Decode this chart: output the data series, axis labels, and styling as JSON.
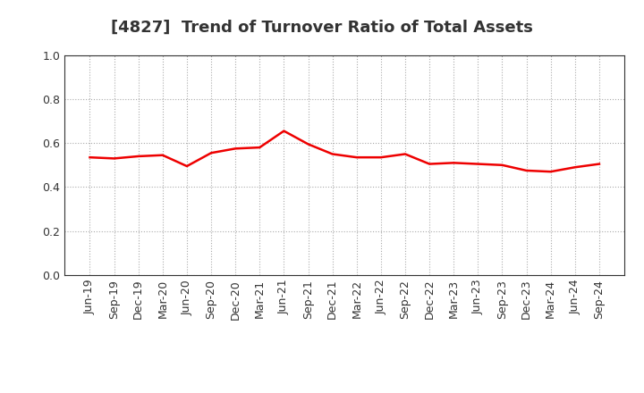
{
  "title": "[4827]  Trend of Turnover Ratio of Total Assets",
  "x_labels": [
    "Jun-19",
    "Sep-19",
    "Dec-19",
    "Mar-20",
    "Jun-20",
    "Sep-20",
    "Dec-20",
    "Mar-21",
    "Jun-21",
    "Sep-21",
    "Dec-21",
    "Mar-22",
    "Jun-22",
    "Sep-22",
    "Dec-22",
    "Mar-23",
    "Jun-23",
    "Sep-23",
    "Dec-23",
    "Mar-24",
    "Jun-24",
    "Sep-24"
  ],
  "y_values": [
    0.535,
    0.53,
    0.54,
    0.545,
    0.495,
    0.555,
    0.575,
    0.58,
    0.655,
    0.595,
    0.55,
    0.535,
    0.535,
    0.55,
    0.505,
    0.51,
    0.505,
    0.5,
    0.475,
    0.47,
    0.49,
    0.505
  ],
  "line_color": "#ee0000",
  "line_width": 1.8,
  "ylim": [
    0.0,
    1.0
  ],
  "yticks": [
    0.0,
    0.2,
    0.4,
    0.6,
    0.8,
    1.0
  ],
  "background_color": "#ffffff",
  "grid_color": "#aaaaaa",
  "title_fontsize": 13,
  "tick_fontsize": 9,
  "title_color": "#333333"
}
